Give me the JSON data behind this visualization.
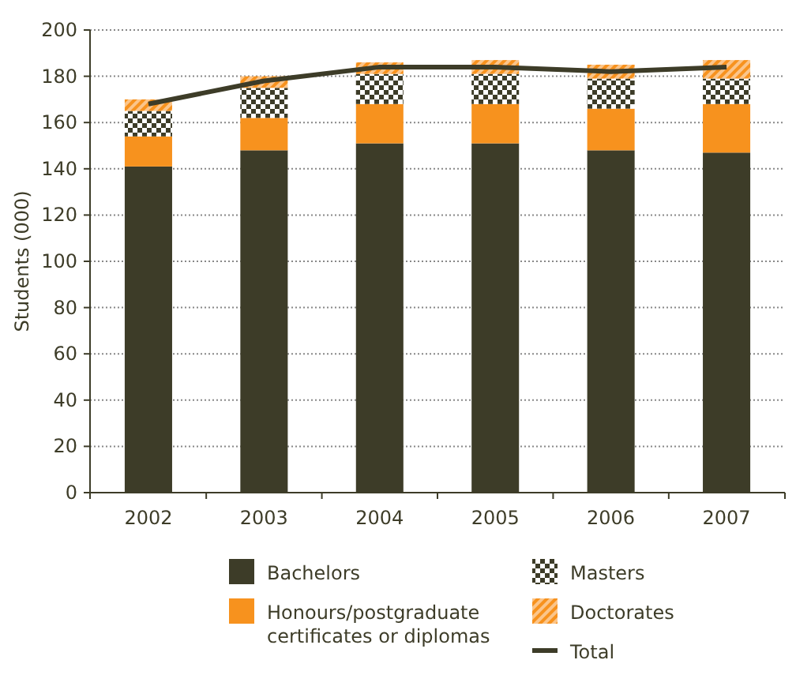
{
  "chart_data": {
    "type": "bar",
    "stacked": true,
    "ylabel": "Students (000)",
    "categories": [
      "2002",
      "2003",
      "2004",
      "2005",
      "2006",
      "2007"
    ],
    "series": [
      {
        "name": "Bachelors",
        "color": "#3d3c28",
        "values": [
          141,
          148,
          151,
          151,
          148,
          147
        ]
      },
      {
        "name": "Honours/postgraduate certificates or diplomas",
        "color": "#f7921e",
        "values": [
          13,
          14,
          17,
          17,
          18,
          21
        ]
      },
      {
        "name": "Masters",
        "color": "#3d3c28",
        "values": [
          11,
          13,
          13,
          13,
          13,
          11
        ]
      },
      {
        "name": "Doctorates",
        "color": "#f7921e",
        "values": [
          5,
          5,
          5,
          6,
          6,
          8
        ]
      },
      {
        "name": "Total",
        "type": "line",
        "color": "#3d3c28",
        "values": [
          168,
          178,
          184,
          184,
          182,
          184
        ]
      }
    ],
    "ylim": [
      0,
      200
    ],
    "yticks": [
      0,
      20,
      40,
      60,
      80,
      100,
      120,
      140,
      160,
      180,
      200
    ],
    "grid": "y",
    "legend": "bottom"
  }
}
